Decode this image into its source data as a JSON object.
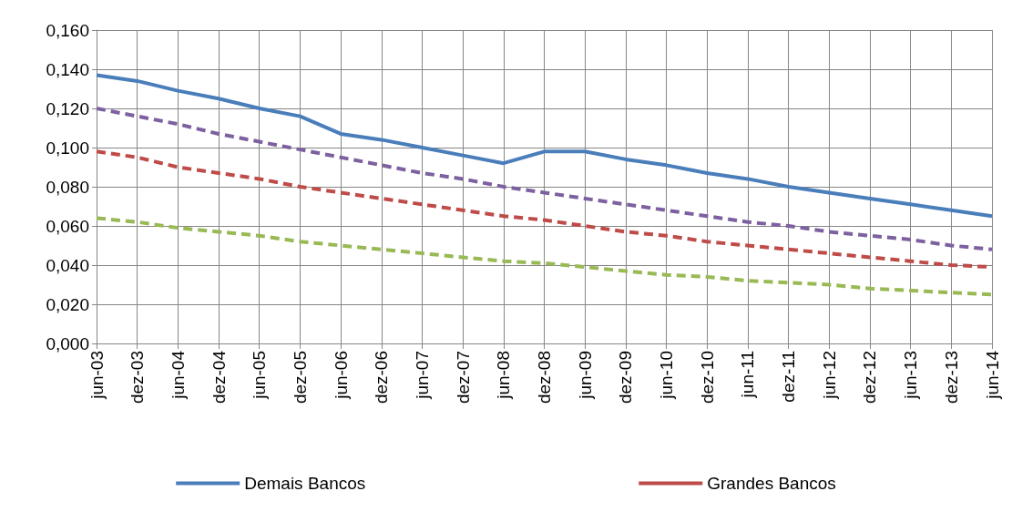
{
  "chart_data": {
    "type": "line",
    "categories": [
      "jun-03",
      "dez-03",
      "jun-04",
      "dez-04",
      "jun-05",
      "dez-05",
      "jun-06",
      "dez-06",
      "jun-07",
      "dez-07",
      "jun-08",
      "dez-08",
      "jun-09",
      "dez-09",
      "jun-10",
      "dez-10",
      "jun-11",
      "dez-11",
      "jun-12",
      "dez-12",
      "jun-13",
      "dez-13",
      "jun-14"
    ],
    "series": [
      {
        "name": "Demais Bancos",
        "color": "#4a7ebb",
        "line_style": "solid",
        "values": [
          0.137,
          0.134,
          0.129,
          0.125,
          0.12,
          0.116,
          0.107,
          0.104,
          0.1,
          0.096,
          0.092,
          0.098,
          0.098,
          0.094,
          0.091,
          0.087,
          0.084,
          0.08,
          0.077,
          0.074,
          0.071,
          0.068,
          0.065
        ]
      },
      {
        "name": "Grandes Bancos",
        "color": "#be4b48",
        "line_style": "dashed",
        "values": [
          0.098,
          0.095,
          0.09,
          0.087,
          0.084,
          0.08,
          0.077,
          0.074,
          0.071,
          0.068,
          0.065,
          0.063,
          0.06,
          0.057,
          0.055,
          0.052,
          0.05,
          0.048,
          0.046,
          0.044,
          0.042,
          0.04,
          0.039
        ]
      },
      {
        "color": "#98b954",
        "line_style": "dashed",
        "values": [
          0.064,
          0.062,
          0.059,
          0.057,
          0.055,
          0.052,
          0.05,
          0.048,
          0.046,
          0.044,
          0.042,
          0.041,
          0.039,
          0.037,
          0.035,
          0.034,
          0.032,
          0.031,
          0.03,
          0.028,
          0.027,
          0.026,
          0.025
        ]
      },
      {
        "color": "#7d60a0",
        "line_style": "dashed",
        "values": [
          0.12,
          0.116,
          0.112,
          0.107,
          0.103,
          0.099,
          0.095,
          0.091,
          0.087,
          0.084,
          0.08,
          0.077,
          0.074,
          0.071,
          0.068,
          0.065,
          0.062,
          0.06,
          0.057,
          0.055,
          0.053,
          0.05,
          0.048
        ]
      }
    ],
    "ylim": [
      0,
      0.16
    ],
    "yticks": [
      {
        "value": 0,
        "label": "0,000"
      },
      {
        "value": 0.02,
        "label": "0,020"
      },
      {
        "value": 0.04,
        "label": "0,040"
      },
      {
        "value": 0.06,
        "label": "0,060"
      },
      {
        "value": 0.08,
        "label": "0,080"
      },
      {
        "value": 0.1,
        "label": "0,100"
      },
      {
        "value": 0.12,
        "label": "0,120"
      },
      {
        "value": 0.14,
        "label": "0,140"
      },
      {
        "value": 0.16,
        "label": "0,160"
      }
    ],
    "grid": true,
    "legend": "bottom",
    "marker": "none"
  }
}
